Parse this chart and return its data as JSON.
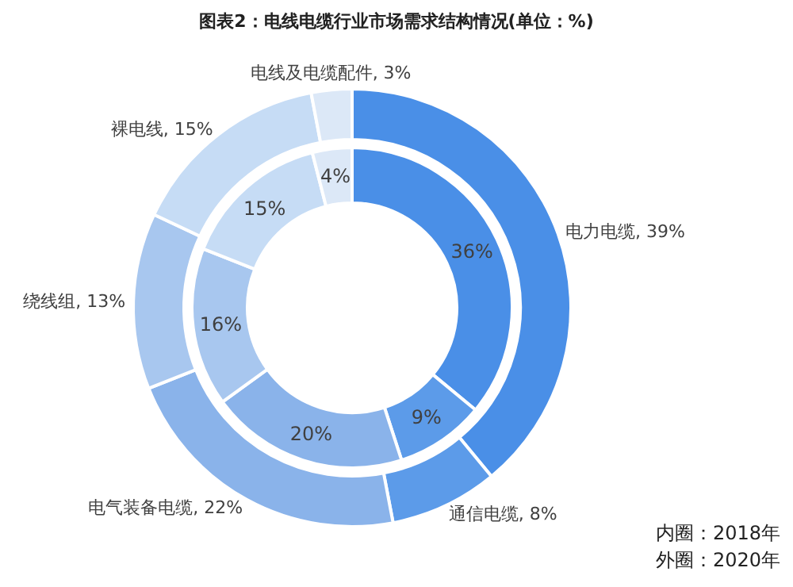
{
  "chart_data": {
    "type": "donut",
    "title": "图表2：电线电缆行业市场需求结构情况(单位：%)",
    "categories": [
      "电力电缆",
      "通信电缆",
      "电气装备电缆",
      "绕线组",
      "裸电线",
      "电线及电缆配件"
    ],
    "colors": [
      "#4a8fe7",
      "#5c9be9",
      "#8ab3ea",
      "#a8c7ef",
      "#c6dcf5",
      "#dce8f7"
    ],
    "series": [
      {
        "values": [
          36,
          9,
          20,
          16,
          15,
          4
        ],
        "value_labels": [
          "36%",
          "9%",
          "20%",
          "16%",
          "15%",
          "4%"
        ]
      },
      {
        "values": [
          39,
          8,
          22,
          13,
          15,
          3
        ],
        "value_labels": [
          ", 39%",
          ", 8%",
          ", 22%",
          ", 13%",
          ", 15%",
          ", 3%"
        ]
      }
    ],
    "data_labels": true,
    "annotations": [
      "内圈：2018年",
      "外圈：2020年"
    ]
  }
}
